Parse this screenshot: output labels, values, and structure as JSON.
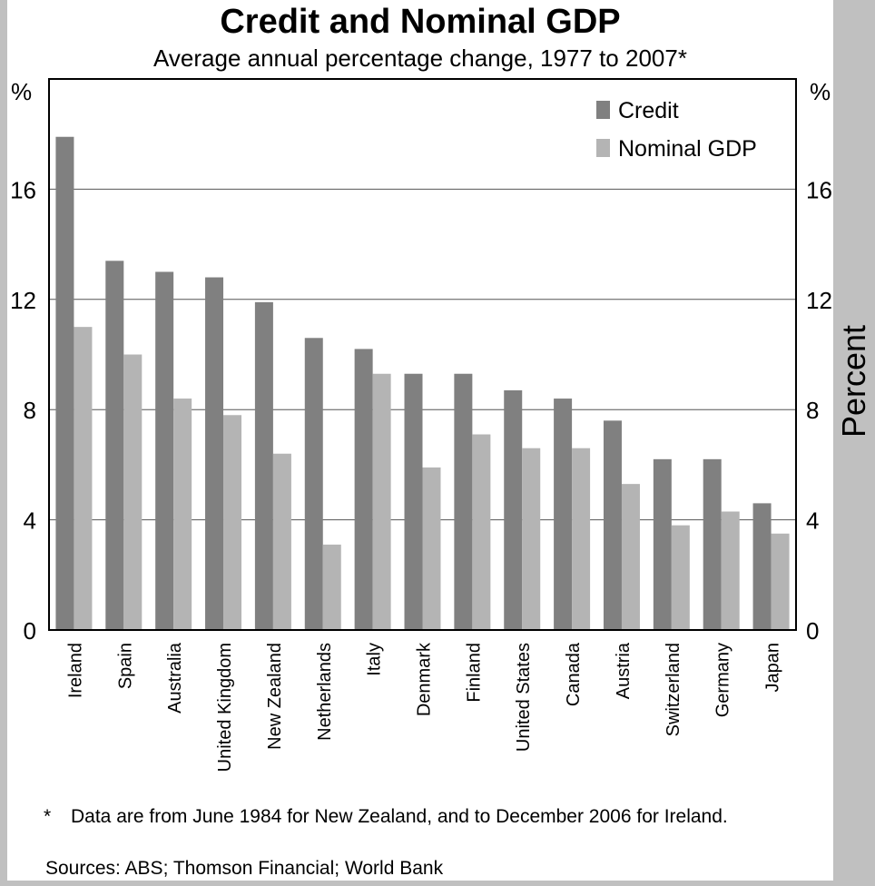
{
  "chart_data": {
    "type": "bar",
    "title": "Credit and Nominal GDP",
    "subtitle": "Average annual percentage change, 1977 to 2007*",
    "categories": [
      "Ireland",
      "Spain",
      "Australia",
      "United Kingdom",
      "New Zealand",
      "Netherlands",
      "Italy",
      "Denmark",
      "Finland",
      "United States",
      "Canada",
      "Austria",
      "Switzerland",
      "Germany",
      "Japan"
    ],
    "series": [
      {
        "name": "Credit",
        "color": "#808080",
        "values": [
          17.9,
          13.4,
          13.0,
          12.8,
          11.9,
          10.6,
          10.2,
          9.3,
          9.3,
          8.7,
          8.4,
          7.6,
          6.2,
          6.2,
          4.6
        ]
      },
      {
        "name": "Nominal GDP",
        "color": "#b4b4b4",
        "values": [
          11.0,
          10.0,
          8.4,
          7.8,
          6.4,
          3.1,
          9.3,
          5.9,
          7.1,
          6.6,
          6.6,
          5.3,
          3.8,
          4.3,
          3.5
        ]
      }
    ],
    "ylim": [
      0,
      20
    ],
    "yticks": [
      0,
      4,
      8,
      12,
      16
    ],
    "left_axis_unit": "%",
    "right_axis_unit": "%",
    "right_ylabel": "Percent",
    "grid": true,
    "legend_position": "top-right"
  },
  "footnote": {
    "marker": "*",
    "text": "Data are from June 1984 for New Zealand, and to December 2006 for Ireland."
  },
  "sources": "Sources: ABS; Thomson Financial; World Bank"
}
